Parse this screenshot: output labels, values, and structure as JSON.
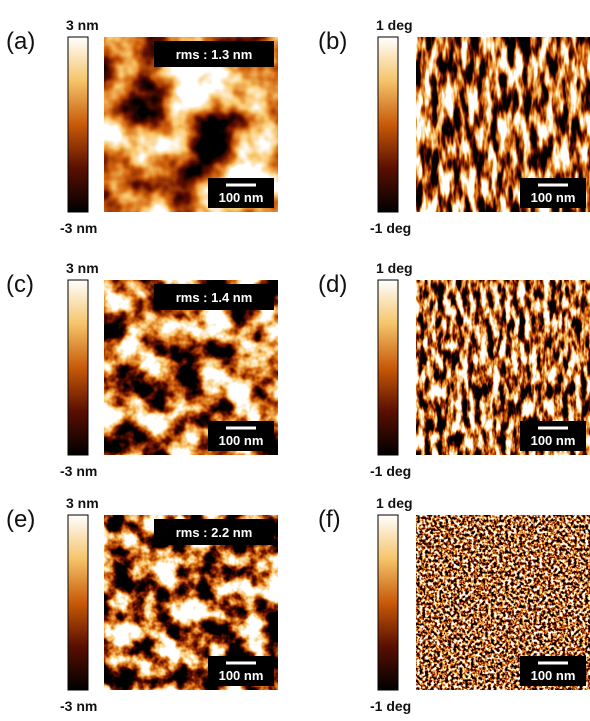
{
  "panels": [
    {
      "label": "(a)",
      "scale_max": "3 nm",
      "scale_min": "-3 nm",
      "rms": "rms : 1.3 nm",
      "scale_bar": "100 nm"
    },
    {
      "label": "(b)",
      "scale_max": "1 deg",
      "scale_min": "-1 deg",
      "scale_bar": "100 nm"
    },
    {
      "label": "(c)",
      "scale_max": "3 nm",
      "scale_min": "-3 nm",
      "rms": "rms : 1.4 nm",
      "scale_bar": "100 nm"
    },
    {
      "label": "(d)",
      "scale_max": "1 deg",
      "scale_min": "-1 deg",
      "scale_bar": "100 nm"
    },
    {
      "label": "(e)",
      "scale_max": "3 nm",
      "scale_min": "-3 nm",
      "rms": "rms : 2.2 nm",
      "scale_bar": "100 nm"
    },
    {
      "label": "(f)",
      "scale_max": "1 deg",
      "scale_min": "-1 deg",
      "scale_bar": "100 nm"
    }
  ]
}
